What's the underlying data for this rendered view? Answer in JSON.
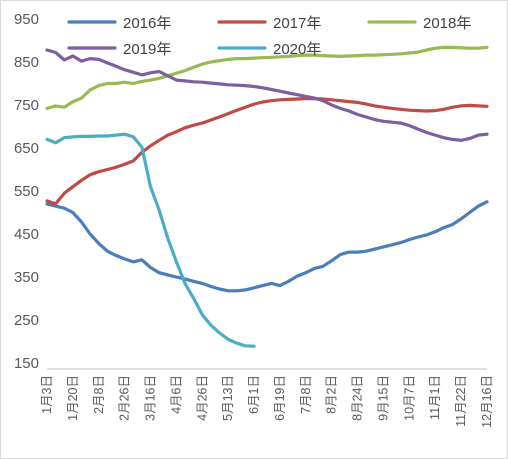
{
  "chart_data": {
    "type": "line",
    "title": "",
    "xlabel": "",
    "ylabel": "",
    "ylim": [
      150,
      950
    ],
    "yticks": [
      150,
      250,
      350,
      450,
      550,
      650,
      750,
      850,
      950
    ],
    "grid": false,
    "legend_position": "top",
    "x_count": 52,
    "x_tick_labels": [
      "1月3日",
      "1月20日",
      "2月8日",
      "2月26日",
      "3月16日",
      "4月6日",
      "4月26日",
      "5月13日",
      "6月1日",
      "6月19日",
      "7月8日",
      "8月2日",
      "8月24日",
      "9月15日",
      "10月7日",
      "11月1日",
      "11月22日",
      "12月16日"
    ],
    "x_tick_indices": [
      0,
      3,
      6,
      9,
      12,
      15,
      18,
      21,
      24,
      27,
      30,
      33,
      36,
      39,
      42,
      45,
      48,
      51
    ],
    "series": [
      {
        "name": "2016年",
        "color": "#4a7ebb",
        "values": [
          520,
          515,
          510,
          500,
          478,
          450,
          428,
          410,
          400,
          392,
          385,
          390,
          372,
          360,
          355,
          350,
          345,
          340,
          335,
          328,
          322,
          318,
          318,
          320,
          325,
          330,
          335,
          330,
          340,
          352,
          360,
          370,
          375,
          388,
          402,
          408,
          408,
          410,
          415,
          420,
          425,
          430,
          437,
          443,
          448,
          455,
          465,
          472,
          485,
          500,
          515,
          525
        ]
      },
      {
        "name": "2017年",
        "color": "#be4b48",
        "values": [
          527,
          520,
          545,
          560,
          575,
          588,
          595,
          600,
          605,
          612,
          620,
          640,
          655,
          668,
          680,
          688,
          697,
          703,
          708,
          715,
          722,
          730,
          738,
          745,
          752,
          757,
          760,
          762,
          763,
          764,
          765,
          765,
          764,
          762,
          760,
          758,
          756,
          752,
          748,
          745,
          742,
          740,
          738,
          737,
          736,
          737,
          740,
          745,
          748,
          749,
          748,
          747
        ]
      },
      {
        "name": "2018年",
        "color": "#98b954",
        "values": [
          742,
          748,
          745,
          758,
          766,
          785,
          795,
          800,
          800,
          803,
          800,
          805,
          808,
          812,
          818,
          824,
          830,
          838,
          845,
          850,
          853,
          856,
          858,
          858,
          859,
          860,
          861,
          862,
          863,
          865,
          866,
          866,
          865,
          864,
          863,
          864,
          865,
          866,
          866,
          867,
          868,
          869,
          871,
          873,
          878,
          882,
          884,
          884,
          883,
          882,
          882,
          884
        ]
      },
      {
        "name": "2019年",
        "color": "#7d5fa0",
        "values": [
          878,
          872,
          855,
          864,
          852,
          858,
          856,
          848,
          840,
          832,
          826,
          820,
          825,
          828,
          818,
          808,
          806,
          804,
          803,
          801,
          799,
          797,
          796,
          795,
          793,
          790,
          786,
          782,
          778,
          774,
          770,
          766,
          760,
          750,
          742,
          736,
          728,
          722,
          716,
          712,
          710,
          708,
          702,
          694,
          686,
          680,
          674,
          670,
          668,
          672,
          680,
          682
        ]
      },
      {
        "name": "2020年",
        "color": "#4bacc6",
        "values": [
          670,
          662,
          674,
          676,
          677,
          677,
          678,
          678,
          680,
          682,
          676,
          652,
          560,
          505,
          440,
          385,
          335,
          300,
          262,
          238,
          220,
          205,
          196,
          190,
          189
        ]
      }
    ]
  }
}
